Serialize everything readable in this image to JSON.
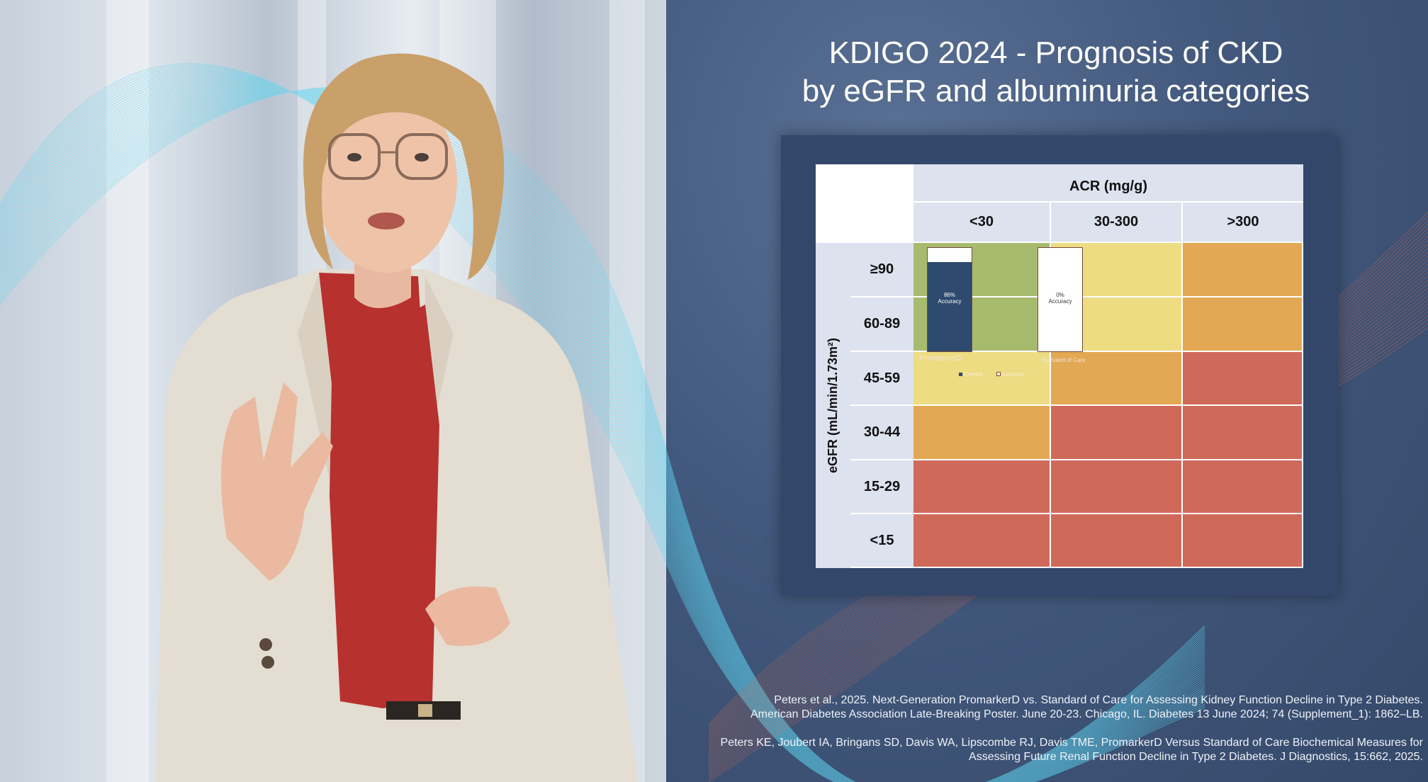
{
  "slide": {
    "title_line1": "KDIGO 2024 - Prognosis of CKD",
    "title_line2": "by eGFR and albuminuria categories"
  },
  "kdigo_grid": {
    "acr_header": "ACR (mg/g)",
    "acr_categories": [
      "<30",
      "30-300",
      ">300"
    ],
    "egfr_axis_label": "eGFR (mL/min/1.73m²)",
    "egfr_categories": [
      "≥90",
      "60-89",
      "45-59",
      "30-44",
      "15-29",
      "<15"
    ],
    "risk_grid": [
      [
        "green",
        "yellow",
        "orange"
      ],
      [
        "green",
        "yellow",
        "orange"
      ],
      [
        "yellow",
        "orange",
        "red"
      ],
      [
        "orange",
        "red",
        "red"
      ],
      [
        "red",
        "red",
        "red"
      ],
      [
        "red",
        "red",
        "red"
      ]
    ],
    "colors": {
      "green": "#a7bb6e",
      "yellow": "#eddc82",
      "orange": "#e3a853",
      "red": "#cf6a5b"
    }
  },
  "overlay_chart": {
    "promarker_label": "PromarkerD",
    "promarker_accuracy": "86%",
    "promarker_accuracy_label": "Accuracy",
    "promarker_fraction": 0.86,
    "soc_label": "Standard of Care",
    "soc_accuracy": "0%",
    "soc_accuracy_label": "Accuracy",
    "soc_fraction": 0.0,
    "legend_correct": "Correct",
    "legend_incorrect": "Incorrect",
    "bar_color": "#2e4a6e"
  },
  "citations": {
    "ref1_line1": "Peters et al., 2025. Next-Generation PromarkerD vs. Standard of Care for Assessing Kidney Function Decline in Type 2 Diabetes.",
    "ref1_line2": "American Diabetes Association Late-Breaking Poster. June 20-23. Chicago, IL. Diabetes 13 June 2024; 74 (Supplement_1): 1862–LB.",
    "ref2_line1": "Peters KE, Joubert IA, Bringans SD, Davis WA, Lipscombe RJ, Davis TME, PromarkerD Versus Standard of Care Biochemical Measures for",
    "ref2_line2": "Assessing Future Renal Function Decline in Type 2 Diabetes. J Diagnostics, 15:662, 2025."
  }
}
